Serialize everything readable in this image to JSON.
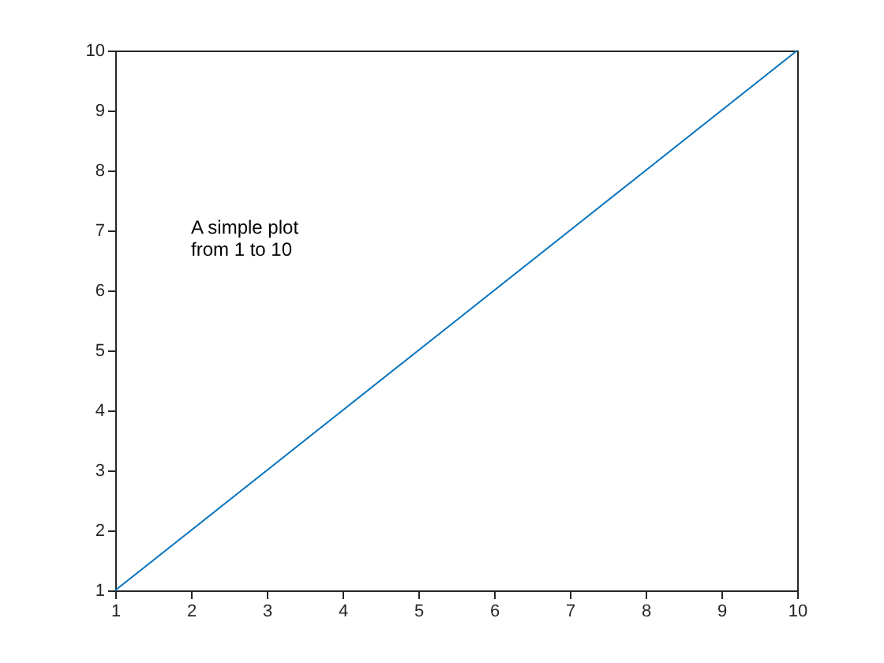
{
  "chart_data": {
    "type": "line",
    "x": [
      1,
      2,
      3,
      4,
      5,
      6,
      7,
      8,
      9,
      10
    ],
    "series": [
      {
        "color": "#0072bd",
        "values": [
          1,
          2,
          3,
          4,
          5,
          6,
          7,
          8,
          9,
          10
        ]
      }
    ],
    "xlim": [
      1,
      10
    ],
    "ylim": [
      1,
      10
    ],
    "xticks": [
      1,
      2,
      3,
      4,
      5,
      6,
      7,
      8,
      9,
      10
    ],
    "yticks": [
      1,
      2,
      3,
      4,
      5,
      6,
      7,
      8,
      9,
      10
    ],
    "annotations": [
      "A simple plot\nfrom 1 to 10"
    ],
    "grid": false,
    "marker": "none",
    "line_style": "solid"
  }
}
